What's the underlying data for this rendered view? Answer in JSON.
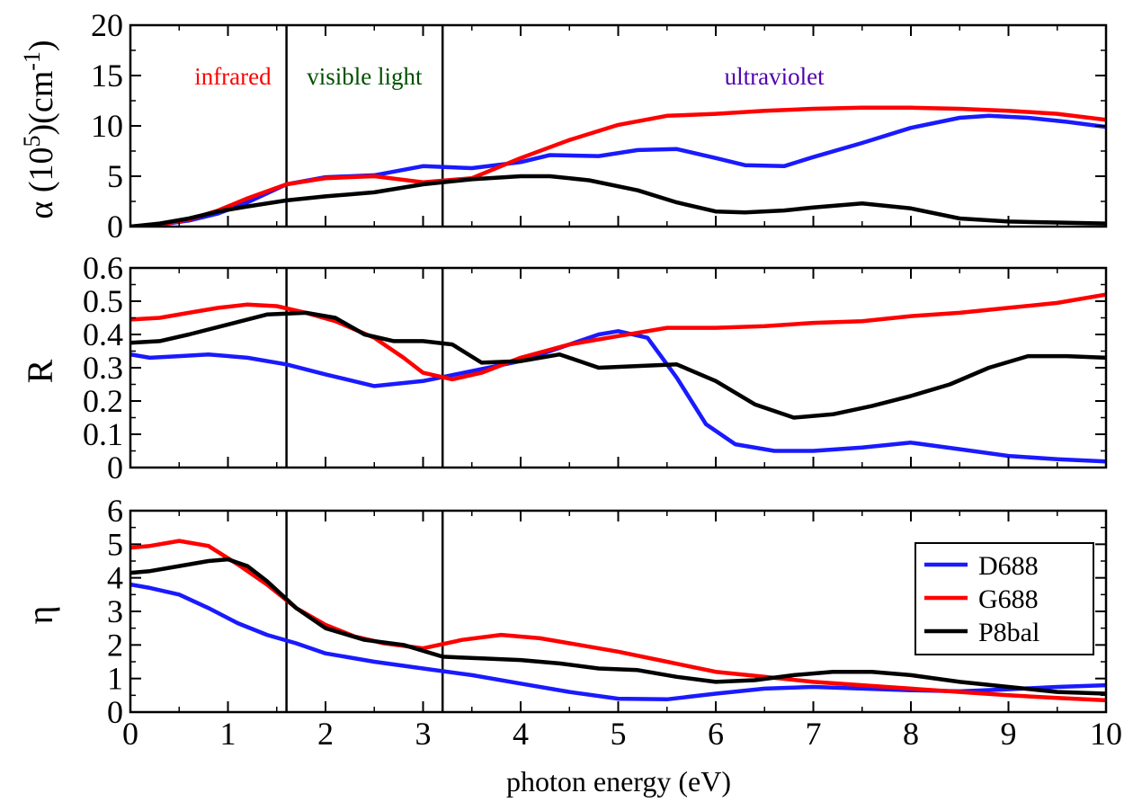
{
  "chart_data": [
    {
      "id": "alpha",
      "type": "line",
      "ylabel_prefix": "α (10",
      "ylabel_exp": "5",
      "ylabel_mid": ")(cm",
      "ylabel_exp2": "-1",
      "ylabel_suffix": ")",
      "xlim": [
        0,
        10
      ],
      "ylim": [
        0,
        20
      ],
      "yticks": [
        0,
        5,
        10,
        15,
        20
      ],
      "yticklabels": [
        "0",
        "5",
        "10",
        "15",
        "20"
      ],
      "annotations": [
        {
          "text": "infrared",
          "x": 1.05,
          "y": 15,
          "color": "#ff0000"
        },
        {
          "text": "visible light",
          "x": 2.4,
          "y": 15,
          "color": "#005000"
        },
        {
          "text": "ultraviolet",
          "x": 6.6,
          "y": 15,
          "color": "#5000b0"
        }
      ],
      "series": [
        {
          "name": "D688",
          "color": "#1a1aff",
          "x": [
            0,
            0.3,
            0.6,
            0.9,
            1.2,
            1.6,
            2.0,
            2.5,
            3.0,
            3.5,
            4.0,
            4.3,
            4.8,
            5.2,
            5.6,
            6.0,
            6.3,
            6.7,
            7.0,
            7.5,
            8.0,
            8.5,
            8.8,
            9.2,
            9.6,
            10.0
          ],
          "y": [
            0,
            0.2,
            0.6,
            1.3,
            2.4,
            4.2,
            4.9,
            5.1,
            6.0,
            5.8,
            6.4,
            7.1,
            7.0,
            7.6,
            7.7,
            6.8,
            6.1,
            6.0,
            6.9,
            8.3,
            9.8,
            10.8,
            11.0,
            10.8,
            10.4,
            9.9
          ]
        },
        {
          "name": "G688",
          "color": "#ff0000",
          "x": [
            0,
            0.3,
            0.6,
            0.9,
            1.2,
            1.6,
            2.0,
            2.5,
            3.0,
            3.5,
            4.0,
            4.5,
            5.0,
            5.5,
            6.0,
            6.5,
            7.0,
            7.5,
            8.0,
            8.5,
            9.0,
            9.5,
            10.0
          ],
          "y": [
            0,
            0.2,
            0.7,
            1.6,
            2.8,
            4.2,
            4.8,
            5.0,
            4.4,
            4.8,
            6.8,
            8.6,
            10.1,
            11.0,
            11.2,
            11.5,
            11.7,
            11.8,
            11.8,
            11.7,
            11.5,
            11.2,
            10.6
          ]
        },
        {
          "name": "P8bal",
          "color": "#000000",
          "x": [
            0,
            0.3,
            0.6,
            0.9,
            1.2,
            1.6,
            2.0,
            2.5,
            3.0,
            3.5,
            4.0,
            4.3,
            4.7,
            5.2,
            5.6,
            6.0,
            6.3,
            6.7,
            7.0,
            7.5,
            8.0,
            8.5,
            9.0,
            9.5,
            10.0
          ],
          "y": [
            0,
            0.3,
            0.8,
            1.5,
            2.0,
            2.6,
            3.0,
            3.4,
            4.2,
            4.7,
            5.0,
            5.0,
            4.6,
            3.6,
            2.4,
            1.5,
            1.4,
            1.6,
            1.9,
            2.3,
            1.8,
            0.8,
            0.5,
            0.4,
            0.3
          ]
        }
      ]
    },
    {
      "id": "reflectivity",
      "type": "line",
      "ylabel": "R",
      "xlim": [
        0,
        10
      ],
      "ylim": [
        0,
        0.6
      ],
      "yticks": [
        0,
        0.1,
        0.2,
        0.3,
        0.4,
        0.5,
        0.6
      ],
      "yticklabels": [
        "0",
        "0.1",
        "0.2",
        "0.3",
        "0.4",
        "0.5",
        "0.6"
      ],
      "series": [
        {
          "name": "D688",
          "color": "#1a1aff",
          "x": [
            0,
            0.2,
            0.5,
            0.8,
            1.2,
            1.6,
            2.0,
            2.5,
            3.0,
            3.5,
            4.0,
            4.5,
            4.8,
            5.0,
            5.3,
            5.6,
            5.9,
            6.2,
            6.6,
            7.0,
            7.5,
            8.0,
            8.5,
            9.0,
            9.5,
            10.0
          ],
          "y": [
            0.34,
            0.33,
            0.335,
            0.34,
            0.33,
            0.31,
            0.28,
            0.245,
            0.26,
            0.29,
            0.32,
            0.37,
            0.4,
            0.41,
            0.39,
            0.27,
            0.13,
            0.07,
            0.05,
            0.05,
            0.06,
            0.075,
            0.055,
            0.035,
            0.025,
            0.018
          ]
        },
        {
          "name": "G688",
          "color": "#ff0000",
          "x": [
            0,
            0.3,
            0.6,
            0.9,
            1.2,
            1.5,
            1.8,
            2.1,
            2.5,
            2.8,
            3.0,
            3.3,
            3.6,
            4.0,
            4.5,
            5.0,
            5.5,
            6.0,
            6.5,
            7.0,
            7.5,
            8.0,
            8.5,
            9.0,
            9.5,
            10.0
          ],
          "y": [
            0.445,
            0.45,
            0.465,
            0.48,
            0.49,
            0.485,
            0.465,
            0.44,
            0.39,
            0.33,
            0.285,
            0.265,
            0.285,
            0.33,
            0.37,
            0.395,
            0.42,
            0.42,
            0.425,
            0.435,
            0.44,
            0.455,
            0.465,
            0.48,
            0.495,
            0.52
          ]
        },
        {
          "name": "P8bal",
          "color": "#000000",
          "x": [
            0,
            0.3,
            0.6,
            1.0,
            1.4,
            1.8,
            2.1,
            2.4,
            2.7,
            3.0,
            3.3,
            3.6,
            4.0,
            4.4,
            4.8,
            5.2,
            5.6,
            6.0,
            6.4,
            6.8,
            7.2,
            7.6,
            8.0,
            8.4,
            8.8,
            9.2,
            9.6,
            10.0
          ],
          "y": [
            0.375,
            0.38,
            0.4,
            0.43,
            0.46,
            0.465,
            0.45,
            0.4,
            0.38,
            0.38,
            0.37,
            0.315,
            0.32,
            0.34,
            0.3,
            0.305,
            0.31,
            0.26,
            0.19,
            0.15,
            0.16,
            0.185,
            0.215,
            0.25,
            0.3,
            0.335,
            0.335,
            0.33
          ]
        }
      ]
    },
    {
      "id": "eta",
      "type": "line",
      "ylabel": "η",
      "xlabel": "photon energy (eV)",
      "xlim": [
        0,
        10
      ],
      "ylim": [
        0,
        6
      ],
      "xticks": [
        0,
        1,
        2,
        3,
        4,
        5,
        6,
        7,
        8,
        9,
        10
      ],
      "xticklabels": [
        "0",
        "1",
        "2",
        "3",
        "4",
        "5",
        "6",
        "7",
        "8",
        "9",
        "10"
      ],
      "yticks": [
        0,
        1,
        2,
        3,
        4,
        5,
        6
      ],
      "yticklabels": [
        "0",
        "1",
        "2",
        "3",
        "4",
        "5",
        "6"
      ],
      "legend_position": "right",
      "series": [
        {
          "name": "D688",
          "color": "#1a1aff",
          "x": [
            0,
            0.2,
            0.5,
            0.8,
            1.1,
            1.4,
            1.7,
            2.0,
            2.5,
            3.0,
            3.5,
            4.0,
            4.5,
            5.0,
            5.5,
            6.0,
            6.5,
            7.0,
            7.5,
            8.0,
            8.5,
            9.0,
            9.5,
            10.0
          ],
          "y": [
            3.8,
            3.7,
            3.5,
            3.1,
            2.65,
            2.3,
            2.05,
            1.75,
            1.5,
            1.3,
            1.1,
            0.85,
            0.6,
            0.4,
            0.38,
            0.55,
            0.7,
            0.75,
            0.7,
            0.65,
            0.62,
            0.68,
            0.75,
            0.8
          ]
        },
        {
          "name": "G688",
          "color": "#ff0000",
          "x": [
            0,
            0.2,
            0.5,
            0.8,
            1.1,
            1.4,
            1.7,
            2.0,
            2.3,
            2.6,
            3.0,
            3.4,
            3.8,
            4.2,
            4.6,
            5.0,
            5.5,
            6.0,
            6.5,
            7.0,
            7.5,
            8.0,
            8.5,
            9.0,
            9.5,
            10.0
          ],
          "y": [
            4.9,
            4.95,
            5.1,
            4.95,
            4.4,
            3.8,
            3.1,
            2.6,
            2.25,
            2.05,
            1.9,
            2.15,
            2.3,
            2.2,
            2.0,
            1.8,
            1.5,
            1.2,
            1.05,
            0.9,
            0.8,
            0.7,
            0.6,
            0.5,
            0.42,
            0.35
          ]
        },
        {
          "name": "P8bal",
          "color": "#000000",
          "x": [
            0,
            0.2,
            0.5,
            0.8,
            1.0,
            1.2,
            1.4,
            1.7,
            2.0,
            2.4,
            2.8,
            3.2,
            3.6,
            4.0,
            4.4,
            4.8,
            5.2,
            5.6,
            6.0,
            6.4,
            6.8,
            7.2,
            7.6,
            8.0,
            8.5,
            9.0,
            9.5,
            10.0
          ],
          "y": [
            4.15,
            4.2,
            4.35,
            4.5,
            4.55,
            4.35,
            3.9,
            3.1,
            2.5,
            2.15,
            2.0,
            1.65,
            1.6,
            1.55,
            1.45,
            1.3,
            1.25,
            1.05,
            0.9,
            0.95,
            1.1,
            1.2,
            1.2,
            1.1,
            0.9,
            0.75,
            0.6,
            0.55
          ]
        }
      ]
    }
  ],
  "legend": {
    "entries": [
      {
        "label": "D688",
        "color": "#1a1aff"
      },
      {
        "label": "G688",
        "color": "#ff0000"
      },
      {
        "label": "P8bal",
        "color": "#000000"
      }
    ]
  },
  "vertical_lines_x": [
    1.6,
    3.2
  ]
}
